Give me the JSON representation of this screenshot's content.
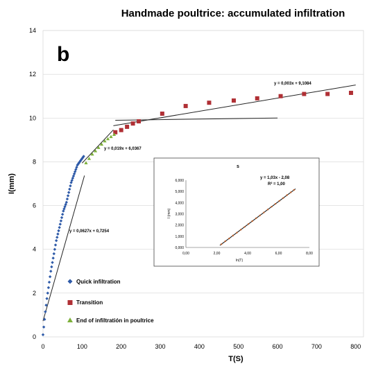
{
  "chart_data": {
    "type": "scatter",
    "title": "Handmade poultrice:  accumulated infiltration",
    "panel_label": "b",
    "xlabel": "T(S)",
    "ylabel": "I(mm)",
    "xlim": [
      0,
      820
    ],
    "ylim": [
      0,
      14
    ],
    "x_ticks": [
      "0",
      "100",
      "200",
      "300",
      "400",
      "500",
      "600",
      "700",
      "800"
    ],
    "y_ticks": [
      "0",
      "2",
      "4",
      "6",
      "8",
      "10",
      "12",
      "14"
    ],
    "grid": true,
    "series": [
      {
        "name": "Quick infiltration",
        "color": "#2e5aa8",
        "marker": "diamond",
        "x": [
          0,
          2,
          4,
          6,
          8,
          10,
          12,
          14,
          16,
          18,
          20,
          22,
          24,
          26,
          28,
          30,
          32,
          34,
          36,
          38,
          40,
          42,
          44,
          46,
          48,
          50,
          52,
          54,
          56,
          58,
          60,
          62,
          64,
          66,
          68,
          70,
          72,
          74,
          76,
          78,
          80,
          82,
          84,
          86,
          88,
          90,
          92,
          94,
          96,
          98,
          100,
          102,
          104
        ],
        "y": [
          0.1,
          0.45,
          0.8,
          1.15,
          1.45,
          1.75,
          2.0,
          2.25,
          2.5,
          2.75,
          3.0,
          3.2,
          3.4,
          3.6,
          3.8,
          4.0,
          4.2,
          4.4,
          4.55,
          4.7,
          4.85,
          5.0,
          5.15,
          5.3,
          5.45,
          5.6,
          5.75,
          5.85,
          5.95,
          6.05,
          6.15,
          6.3,
          6.45,
          6.6,
          6.75,
          6.9,
          7.05,
          7.15,
          7.25,
          7.35,
          7.45,
          7.55,
          7.65,
          7.75,
          7.85,
          7.9,
          7.95,
          8.0,
          8.05,
          8.1,
          8.15,
          8.2,
          8.25
        ]
      },
      {
        "name": "Transition",
        "color": "#b03035",
        "marker": "square",
        "x": [
          185,
          200,
          215,
          230,
          245,
          305,
          365,
          425,
          488,
          548,
          608,
          668,
          728,
          788
        ],
        "y": [
          9.35,
          9.45,
          9.6,
          9.75,
          9.85,
          10.2,
          10.55,
          10.7,
          10.8,
          10.9,
          11.0,
          11.1,
          11.1,
          11.15
        ]
      },
      {
        "name": "End of infiltratión in poultrice",
        "color": "#7db03a",
        "marker": "triangle",
        "x": [
          110,
          118,
          126,
          134,
          142,
          150,
          158,
          166,
          174,
          182
        ],
        "y": [
          7.95,
          8.15,
          8.35,
          8.5,
          8.65,
          8.8,
          8.95,
          9.05,
          9.15,
          9.25
        ]
      }
    ],
    "trendlines": [
      {
        "label": "y = 0,0627x + 0,7254",
        "x": [
          0,
          106
        ],
        "y": [
          0.7254,
          7.37
        ]
      },
      {
        "label": "y = 0,019x + 6,0367",
        "x": [
          100,
          180
        ],
        "y": [
          7.94,
          9.46
        ]
      },
      {
        "label": "y = 0,003x + 9,1084",
        "x": [
          180,
          800
        ],
        "y": [
          9.65,
          11.51
        ]
      },
      {
        "label": "",
        "x": [
          185,
          600
        ],
        "y": [
          9.9,
          10.0
        ]
      }
    ],
    "inset": {
      "title": "s",
      "xlabel": "ln(T)",
      "ylabel": "I (mm)",
      "xlim": [
        0,
        8
      ],
      "ylim": [
        0,
        6
      ],
      "x_ticks": [
        "0,00",
        "2,00",
        "4,00",
        "6,00",
        "8,00"
      ],
      "y_ticks": [
        "0,000",
        "1,000",
        "2,000",
        "3,000",
        "4,000",
        "5,000",
        "6,000"
      ],
      "equation": "y = 1,03x - 2,08",
      "r2": "R² = 1,00",
      "points": {
        "color": "#c0602a",
        "x": [
          2.3,
          2.55,
          2.8,
          3.05,
          3.3,
          3.55,
          3.8,
          4.05,
          4.3,
          4.55,
          4.8,
          5.05,
          5.3,
          5.55,
          5.8,
          6.05,
          6.3,
          6.55,
          6.8,
          7.0
        ],
        "y": [
          0.29,
          0.55,
          0.8,
          1.06,
          1.32,
          1.58,
          1.83,
          2.09,
          2.35,
          2.61,
          2.86,
          3.12,
          3.38,
          3.64,
          3.89,
          4.15,
          4.41,
          4.67,
          4.92,
          5.13
        ]
      },
      "fit": {
        "x": [
          2.2,
          7.1
        ],
        "y": [
          0.19,
          5.23
        ]
      }
    }
  }
}
